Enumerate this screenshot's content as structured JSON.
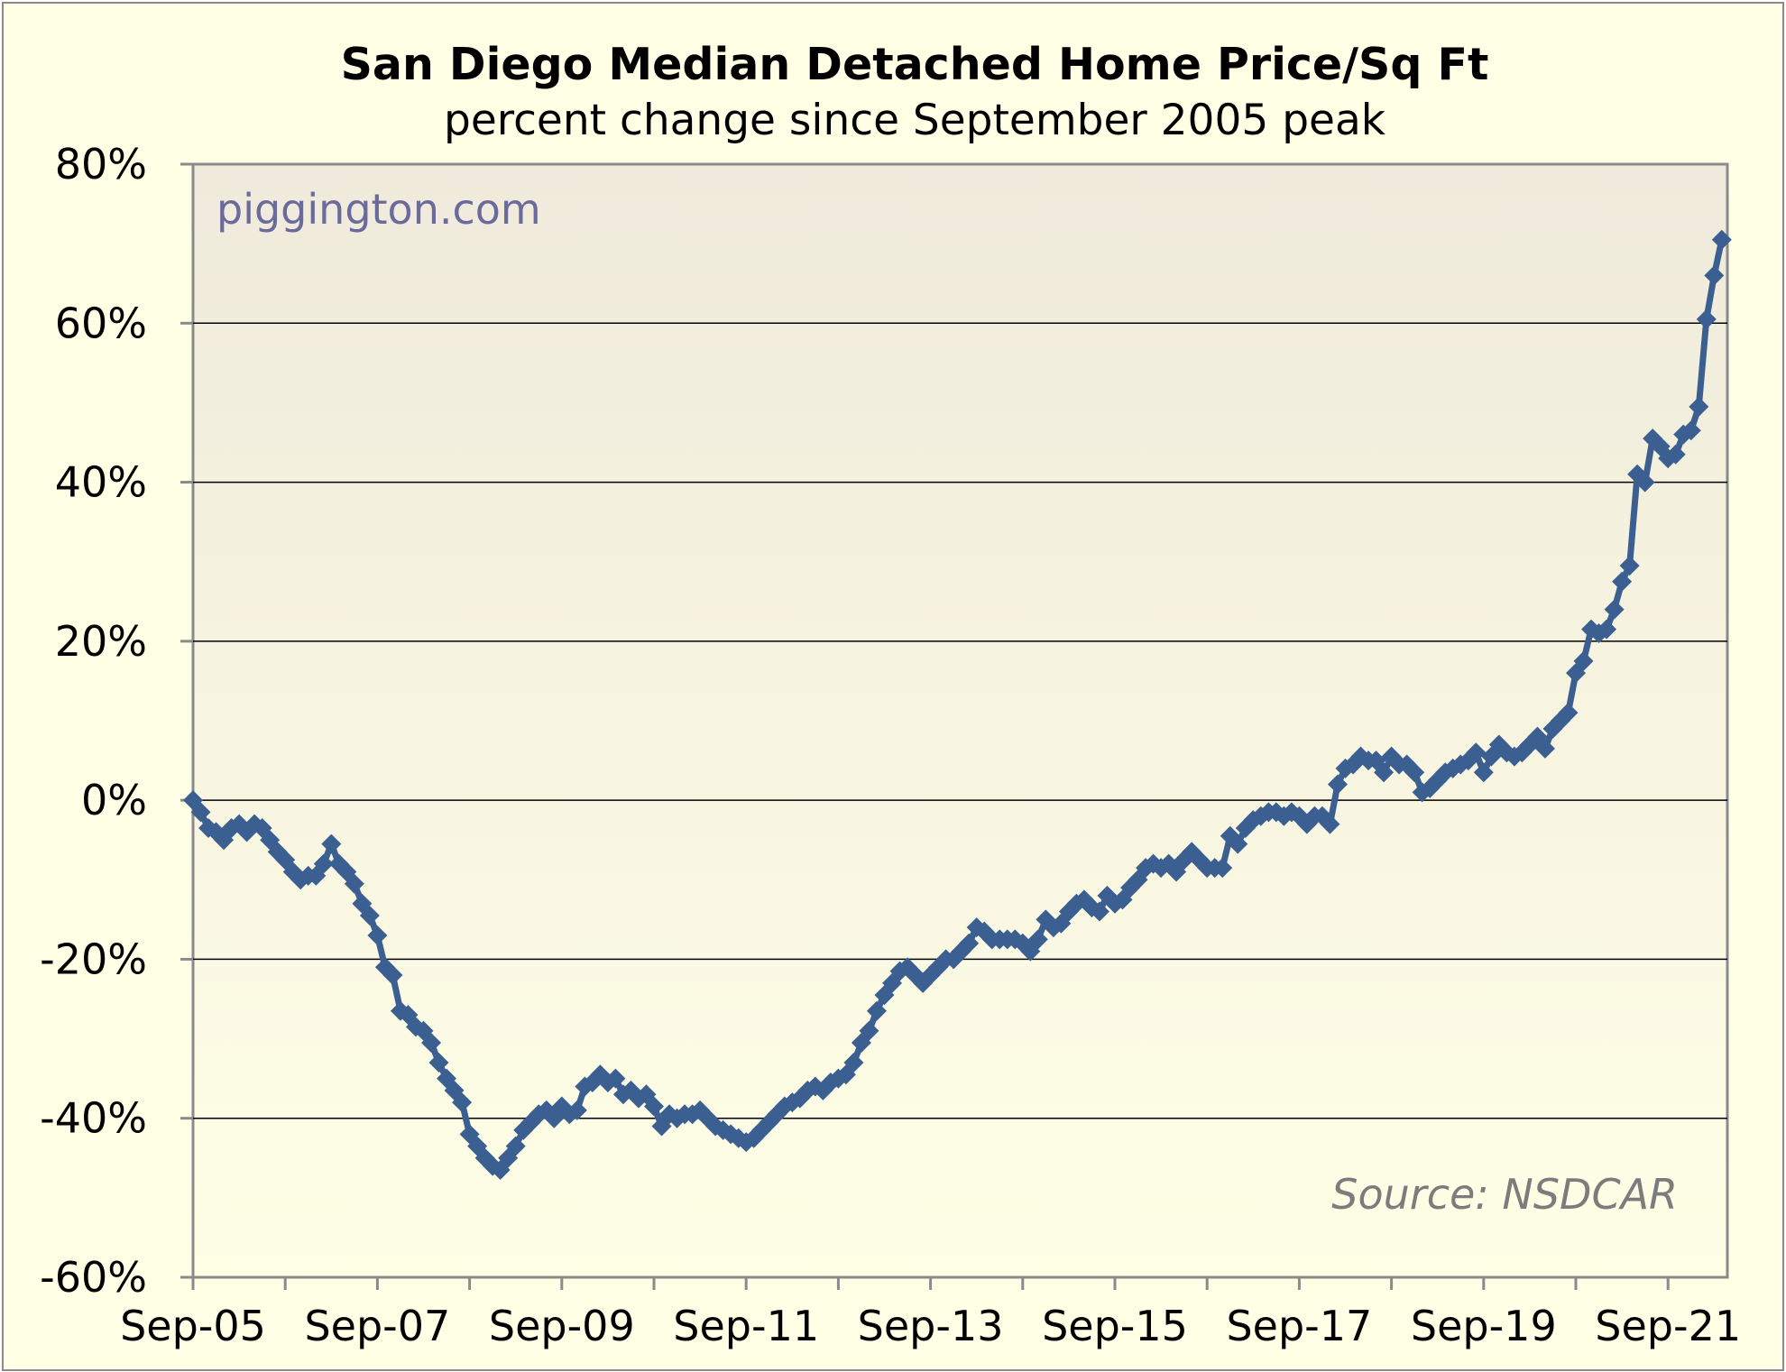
{
  "chart_data": {
    "type": "line",
    "title": "San Diego Median Detached Home Price/Sq Ft",
    "subtitle": "percent change since September 2005 peak",
    "xlabel": "",
    "ylabel": "",
    "ylim": [
      -60,
      80
    ],
    "yticks": [
      "80%",
      "60%",
      "40%",
      "20%",
      "0%",
      "-20%",
      "-40%",
      "-60%"
    ],
    "ytick_values": [
      80,
      60,
      40,
      20,
      0,
      -20,
      -40,
      -60
    ],
    "xticks": [
      "Sep-05",
      "Sep-07",
      "Sep-09",
      "Sep-11",
      "Sep-13",
      "Sep-15",
      "Sep-17",
      "Sep-19",
      "Sep-21"
    ],
    "grid": true,
    "legend": "none",
    "series": [
      {
        "values": [
          0,
          -1.5,
          -3.5,
          -4,
          -5,
          -3.5,
          -3,
          -4,
          -3,
          -3.5,
          -5,
          -6.5,
          -7.5,
          -9,
          -10,
          -9.5,
          -9.5,
          -8,
          -5.5,
          -8,
          -9,
          -10.5,
          -13,
          -14.5,
          -17,
          -21,
          -22,
          -26.5,
          -27,
          -28.5,
          -29,
          -30.5,
          -33,
          -35,
          -36.5,
          -38,
          -42,
          -43.5,
          -45,
          -46,
          -46.5,
          -45,
          -43.5,
          -41.5,
          -40.5,
          -39.5,
          -39,
          -40,
          -38.5,
          -39.5,
          -39,
          -36,
          -35.5,
          -34.5,
          -35.5,
          -35,
          -37,
          -36.5,
          -37.5,
          -37,
          -38.5,
          -41,
          -39.5,
          -40,
          -39.5,
          -39.5,
          -39,
          -40,
          -41,
          -41.5,
          -42,
          -42.5,
          -43,
          -42.5,
          -41.5,
          -40.5,
          -39.5,
          -38.5,
          -38,
          -37.5,
          -36.5,
          -36,
          -36.5,
          -35.5,
          -35,
          -34.5,
          -33,
          -30.5,
          -29,
          -26.5,
          -24.5,
          -23,
          -21.5,
          -21,
          -22,
          -23,
          -22,
          -21,
          -20,
          -20,
          -19,
          -18,
          -16,
          -16.5,
          -17.5,
          -17.5,
          -17.5,
          -17.5,
          -18,
          -19,
          -17.5,
          -15,
          -16,
          -15.5,
          -14,
          -13,
          -12.5,
          -13.5,
          -14,
          -12,
          -13,
          -12.5,
          -11,
          -10,
          -8.5,
          -8,
          -8.5,
          -8,
          -9,
          -7.5,
          -6.5,
          -7.5,
          -8.5,
          -8.5,
          -8.5,
          -4.5,
          -5.5,
          -3.5,
          -2.5,
          -2,
          -1.5,
          -1.5,
          -2,
          -1.5,
          -2,
          -3,
          -2,
          -2,
          -3,
          2,
          4,
          4.5,
          5.5,
          5,
          5,
          3.5,
          5.5,
          4.5,
          4.5,
          3.5,
          1,
          1.5,
          2.5,
          3.5,
          4,
          4.5,
          5,
          6,
          3.5,
          5.5,
          7,
          6,
          5.5,
          6,
          7,
          8,
          6.5,
          9,
          10,
          11,
          16,
          17.5,
          21.5,
          21,
          21.5,
          24,
          27.5,
          29.5,
          41,
          40,
          45.5,
          44.5,
          43,
          43.5,
          46,
          46.5,
          49.5,
          60.5,
          66,
          70.5
        ]
      }
    ]
  },
  "annotations": {
    "watermark": "piggington.com",
    "source": "Source: NSDCAR"
  },
  "colors": {
    "background": "#ffffe6",
    "plot_top": "#efeadb",
    "plot_bottom": "#ffffe6",
    "line": "#3b5f91",
    "marker": "#3b5f91",
    "grid": "#000000",
    "watermark": "#6a6a9c",
    "source": "#7c7c7c"
  }
}
